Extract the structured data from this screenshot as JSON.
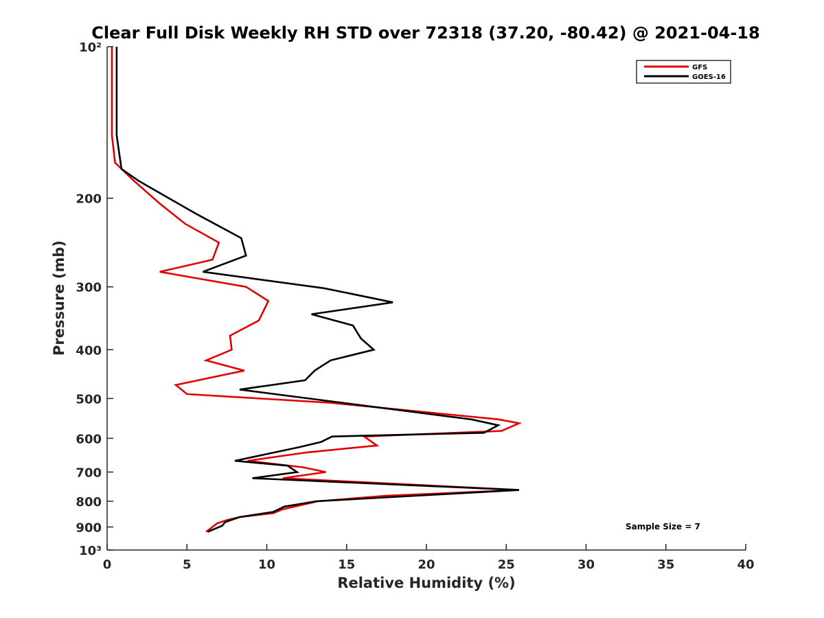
{
  "chart_data": {
    "type": "line",
    "title": "Clear Full Disk Weekly RH STD over 72318 (37.20, -80.42) @ 2021-04-18",
    "xlabel": "Relative Humidity (%)",
    "ylabel": "Pressure (mb)",
    "xlim": [
      0,
      40
    ],
    "ylim": [
      100,
      1000
    ],
    "y_scale": "log",
    "y_reversed": true,
    "x_ticks": [
      0,
      5,
      10,
      15,
      20,
      25,
      30,
      35,
      40
    ],
    "x_tick_labels": [
      "0",
      "5",
      "10",
      "15",
      "20",
      "25",
      "30",
      "35",
      "40"
    ],
    "y_ticks": [
      100,
      200,
      300,
      400,
      500,
      600,
      700,
      800,
      900,
      1000
    ],
    "y_tick_labels": [
      "10²",
      "200",
      "300",
      "400",
      "500",
      "600",
      "700",
      "800",
      "900",
      "10³"
    ],
    "grid": false,
    "legend_position": "top-right",
    "annotation": "Sample Size = 7",
    "series": [
      {
        "name": "GFS",
        "color": "#e00000",
        "points": [
          [
            0.3,
            100
          ],
          [
            0.3,
            150
          ],
          [
            0.5,
            170
          ],
          [
            1.7,
            185
          ],
          [
            3.3,
            205
          ],
          [
            4.9,
            225
          ],
          [
            7.0,
            245
          ],
          [
            6.6,
            265
          ],
          [
            3.3,
            280
          ],
          [
            8.7,
            300
          ],
          [
            10.1,
            320
          ],
          [
            9.5,
            350
          ],
          [
            7.7,
            375
          ],
          [
            7.8,
            400
          ],
          [
            6.2,
            420
          ],
          [
            8.6,
            440
          ],
          [
            4.3,
            470
          ],
          [
            5.0,
            490
          ],
          [
            14.0,
            510
          ],
          [
            24.5,
            550
          ],
          [
            25.8,
            560
          ],
          [
            24.7,
            580
          ],
          [
            16.1,
            595
          ],
          [
            16.9,
            620
          ],
          [
            12.5,
            640
          ],
          [
            8.8,
            665
          ],
          [
            12.3,
            685
          ],
          [
            13.7,
            700
          ],
          [
            11.0,
            720
          ],
          [
            25.8,
            760
          ],
          [
            17.5,
            780
          ],
          [
            13.2,
            800
          ],
          [
            11.0,
            830
          ],
          [
            10.4,
            845
          ],
          [
            8.3,
            860
          ],
          [
            7.6,
            870
          ],
          [
            6.9,
            885
          ],
          [
            6.2,
            920
          ]
        ]
      },
      {
        "name": "GOES-16",
        "color": "#000000",
        "points": [
          [
            0.6,
            100
          ],
          [
            0.6,
            150
          ],
          [
            0.9,
            175
          ],
          [
            2.0,
            185
          ],
          [
            5.6,
            215
          ],
          [
            8.4,
            240
          ],
          [
            8.7,
            260
          ],
          [
            6.0,
            280
          ],
          [
            13.6,
            302
          ],
          [
            17.9,
            322
          ],
          [
            12.8,
            340
          ],
          [
            15.4,
            358
          ],
          [
            15.9,
            380
          ],
          [
            16.7,
            400
          ],
          [
            14.0,
            420
          ],
          [
            13.0,
            440
          ],
          [
            12.4,
            460
          ],
          [
            8.3,
            480
          ],
          [
            13.7,
            505
          ],
          [
            22.8,
            550
          ],
          [
            24.5,
            565
          ],
          [
            23.6,
            585
          ],
          [
            14.1,
            595
          ],
          [
            13.4,
            610
          ],
          [
            12.0,
            625
          ],
          [
            8.0,
            665
          ],
          [
            11.3,
            680
          ],
          [
            11.9,
            700
          ],
          [
            9.1,
            720
          ],
          [
            25.8,
            760
          ],
          [
            13.1,
            800
          ],
          [
            11.1,
            820
          ],
          [
            10.4,
            840
          ],
          [
            8.3,
            860
          ],
          [
            7.4,
            880
          ],
          [
            7.2,
            895
          ],
          [
            6.3,
            920
          ]
        ]
      }
    ]
  }
}
